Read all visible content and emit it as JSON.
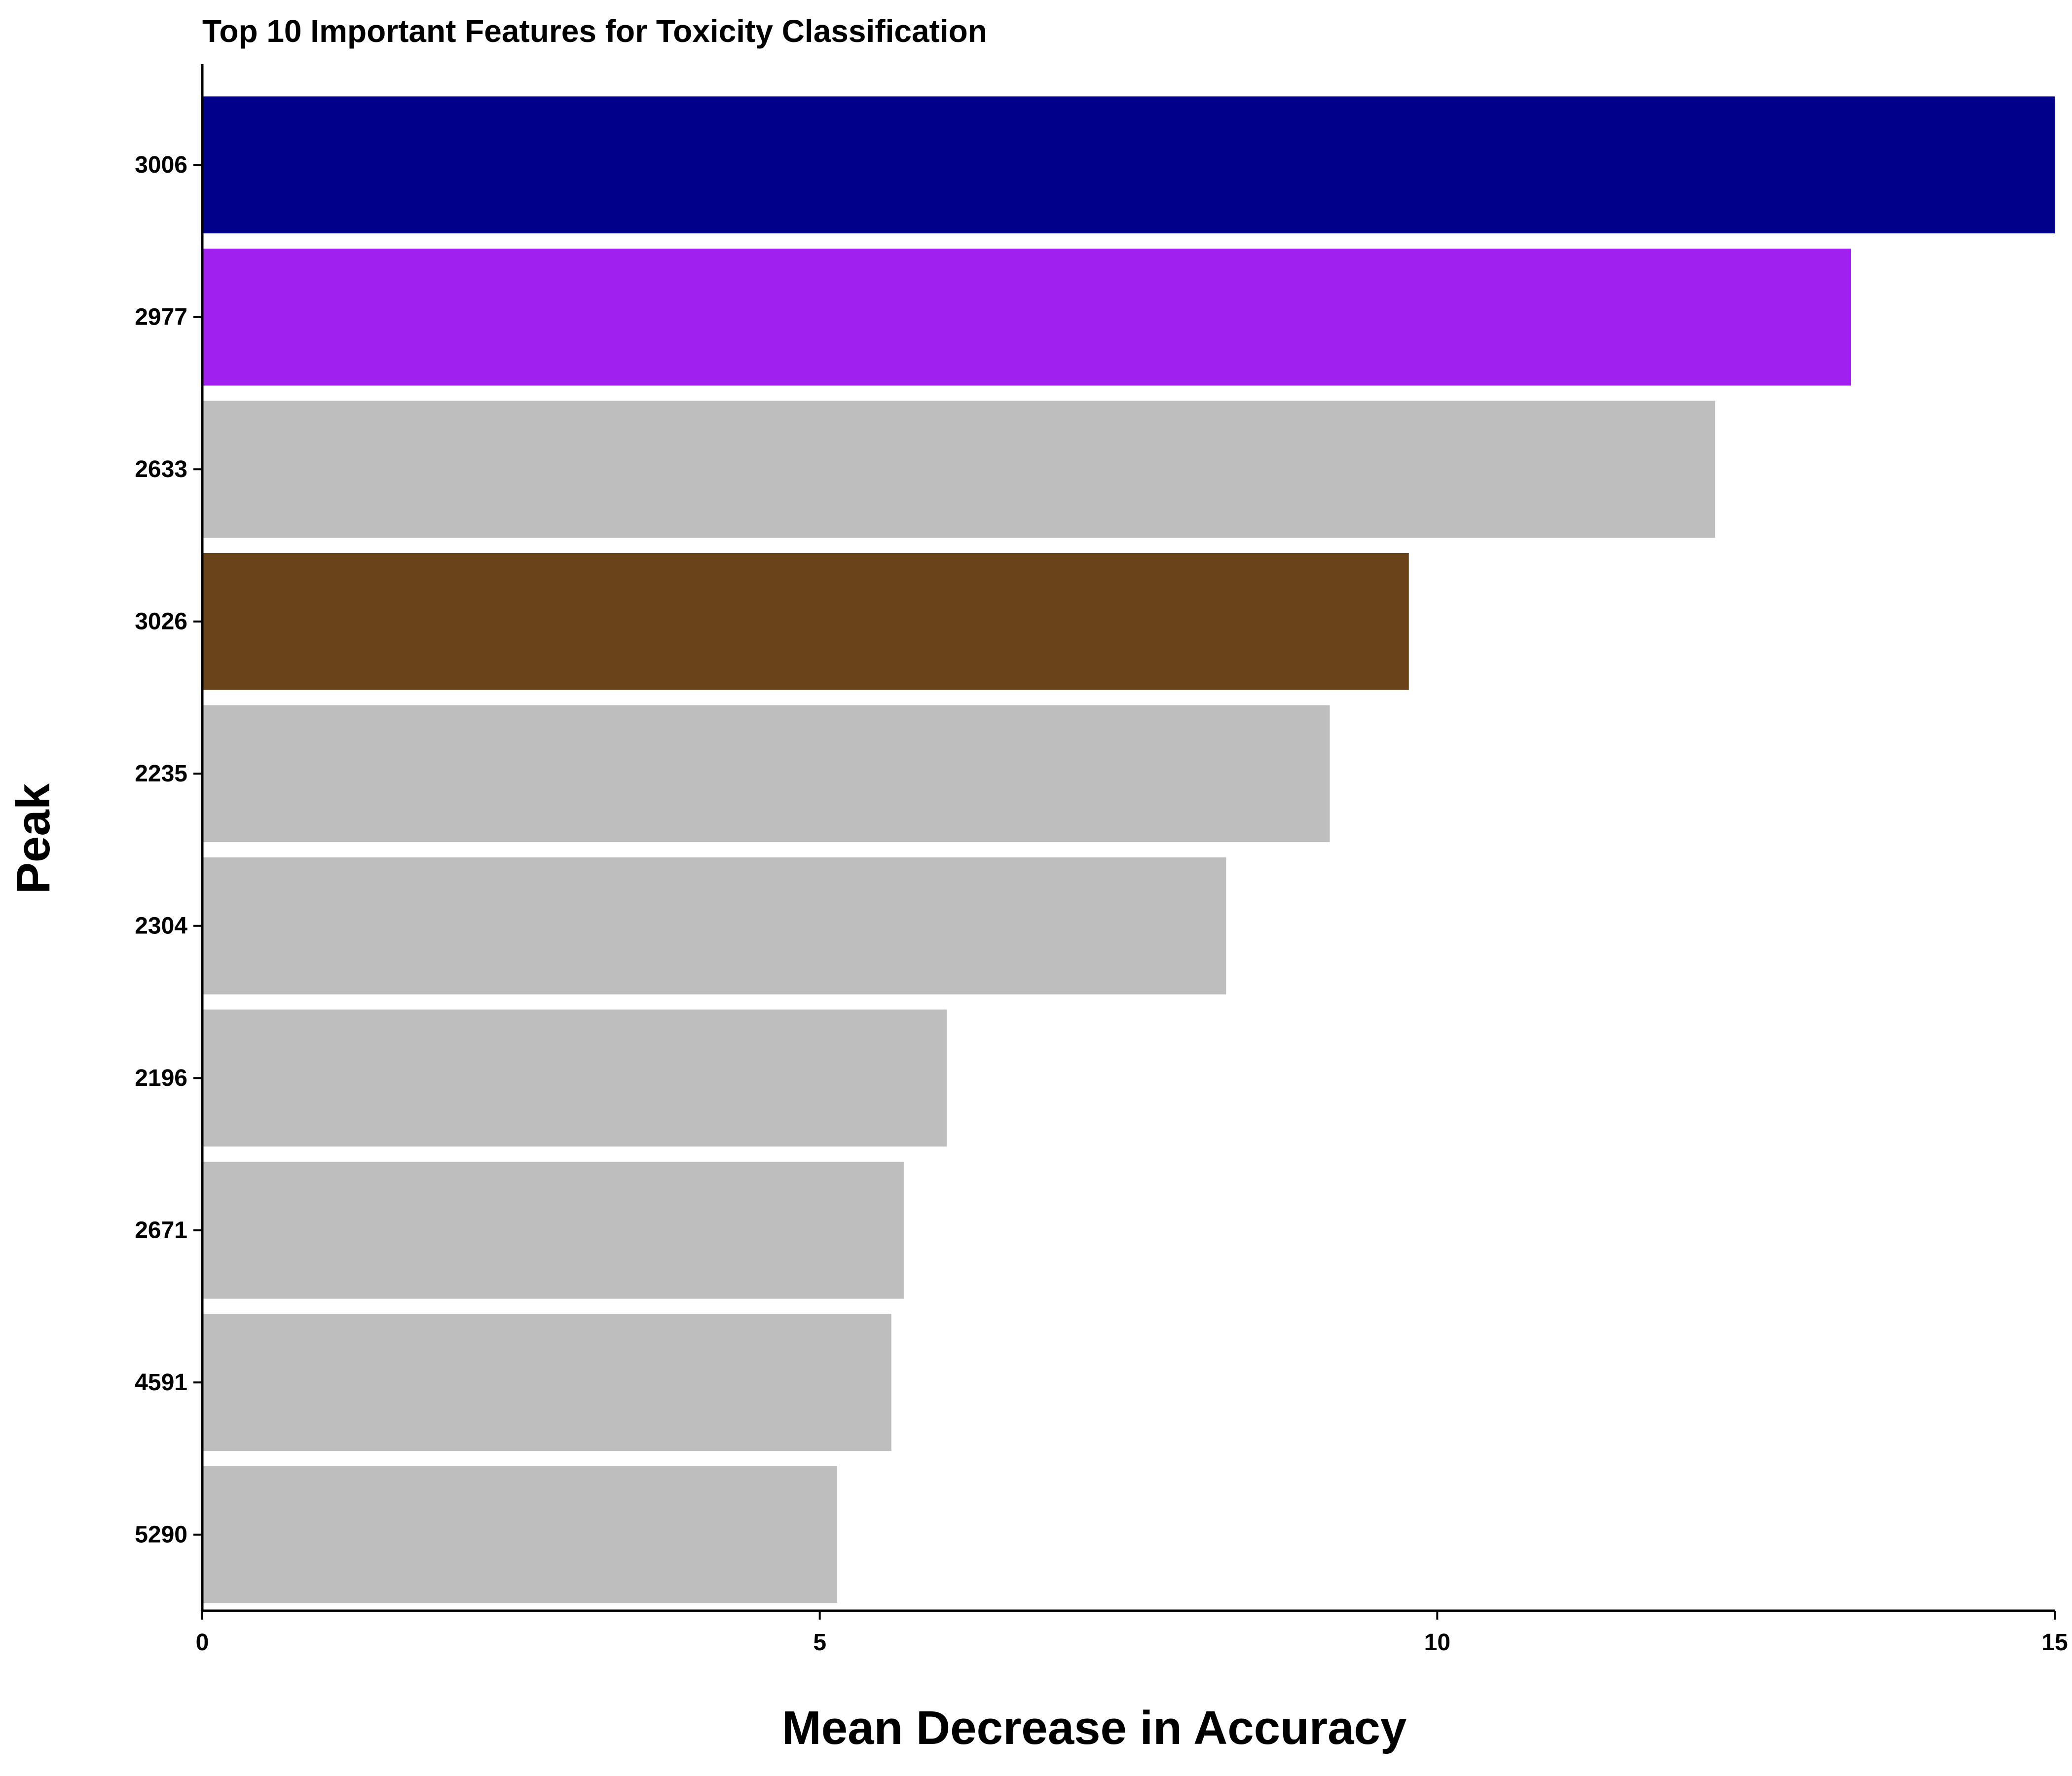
{
  "chart_data": {
    "type": "bar",
    "orientation": "horizontal",
    "title": "Top 10 Important Features for Toxicity Classification",
    "xlabel": "Mean Decrease in Accuracy",
    "ylabel": "Peak",
    "xlim": [
      0,
      15
    ],
    "xticks": [
      0,
      5,
      10,
      15
    ],
    "grid": false,
    "categories": [
      "3006",
      "2977",
      "2633",
      "3026",
      "2235",
      "2304",
      "2196",
      "2671",
      "4591",
      "5290"
    ],
    "values": [
      15.0,
      13.35,
      12.25,
      9.77,
      9.13,
      8.29,
      6.03,
      5.68,
      5.58,
      5.14
    ],
    "colors": [
      "#00008B",
      "#A020F0",
      "#BEBEBE",
      "#6B431B",
      "#BEBEBE",
      "#BEBEBE",
      "#BEBEBE",
      "#BEBEBE",
      "#BEBEBE",
      "#BEBEBE"
    ]
  }
}
